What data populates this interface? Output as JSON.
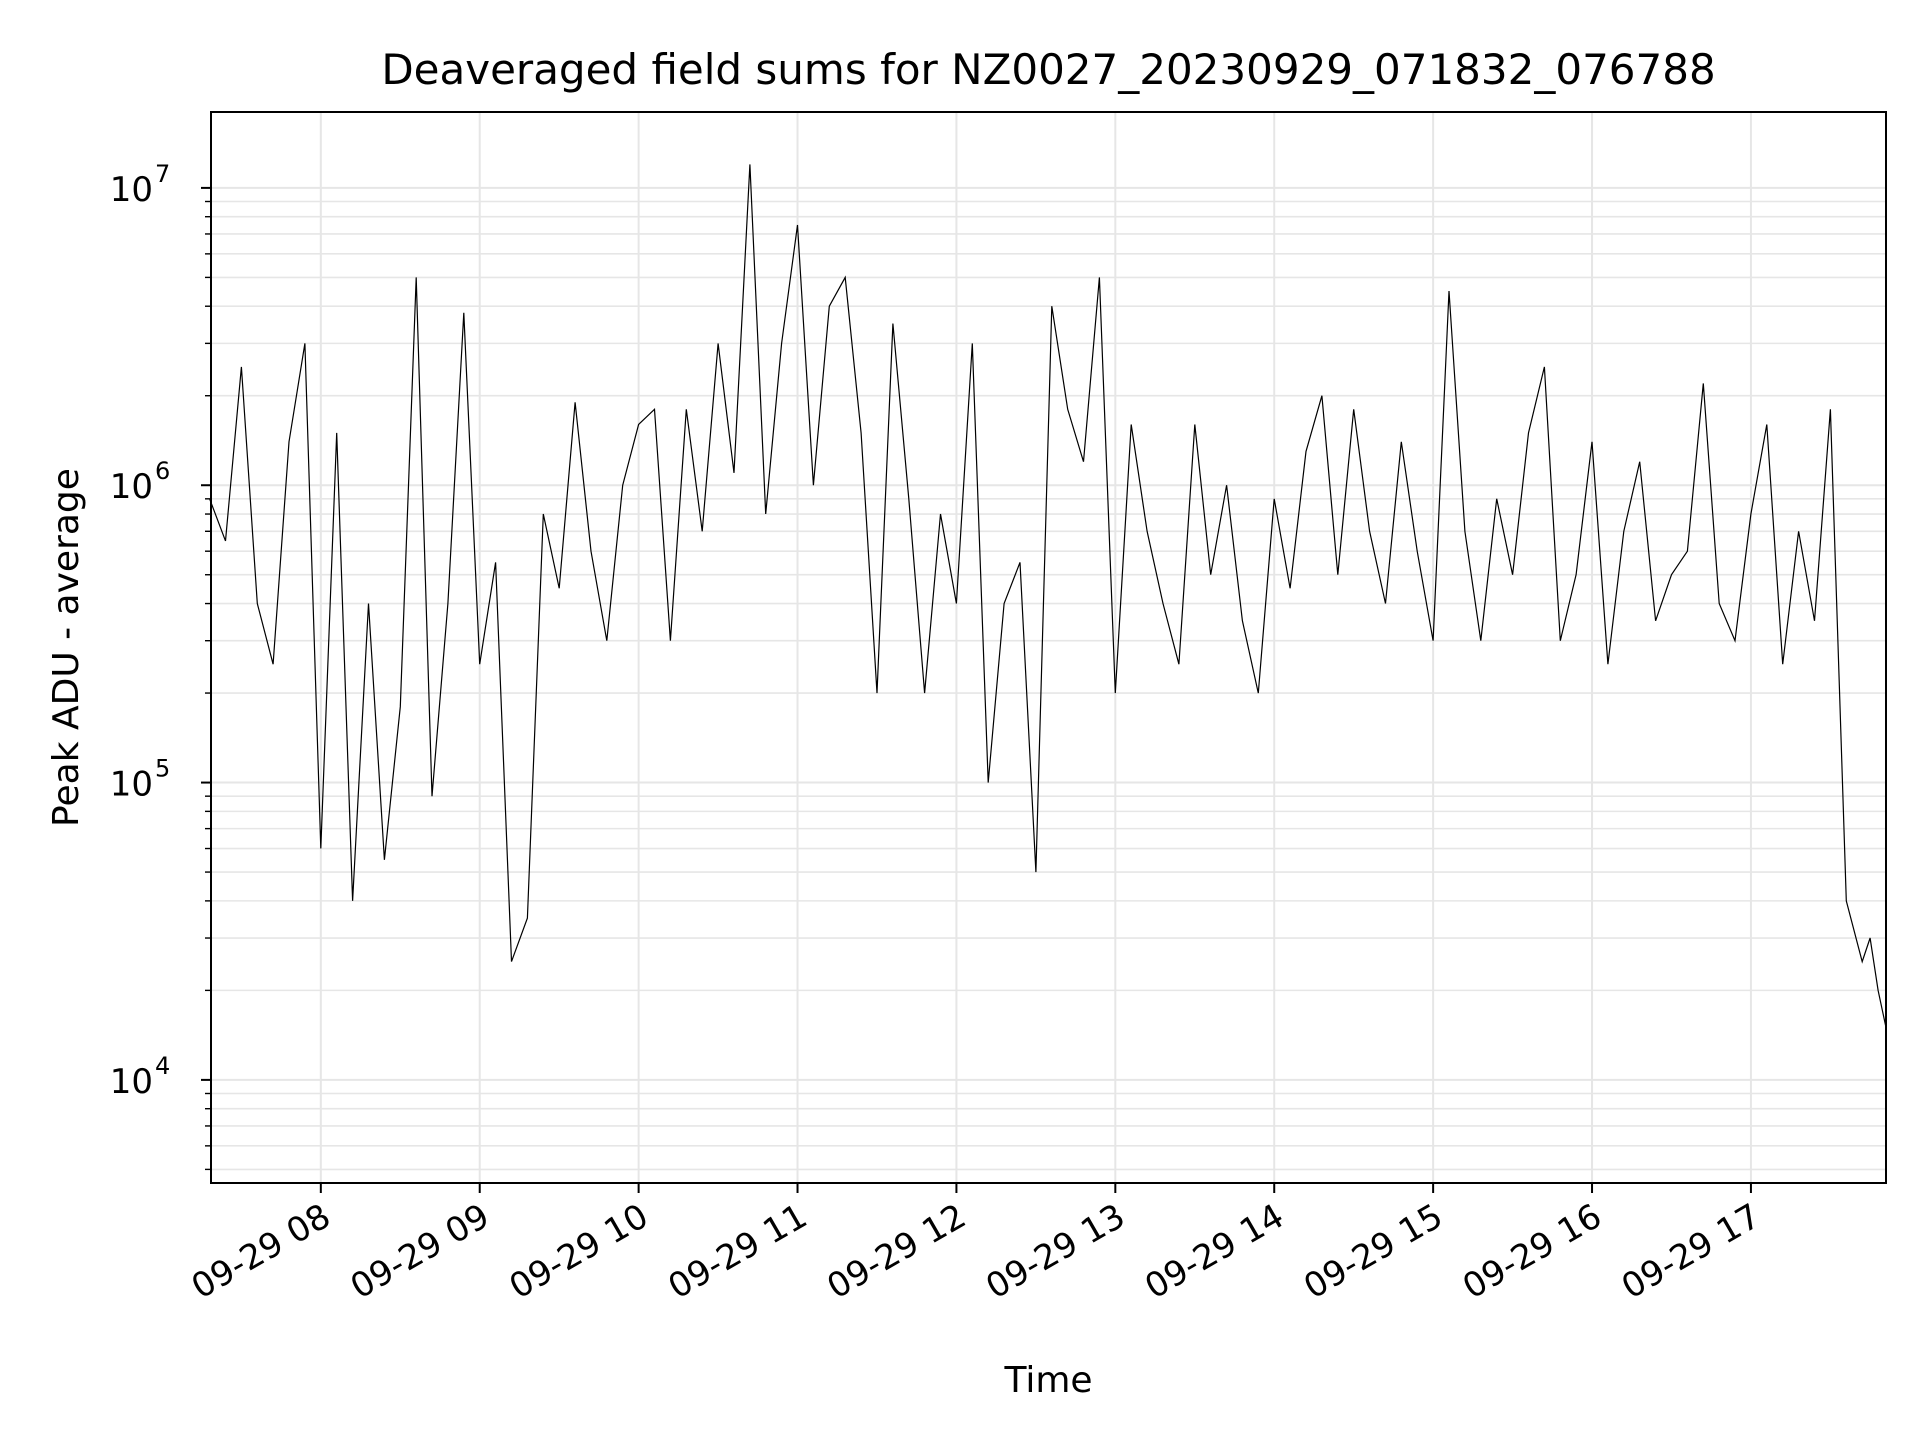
{
  "chart_data": {
    "type": "line",
    "title": "Deaveraged field sums for NZ0027_20230929_071832_076788",
    "xlabel": "Time",
    "ylabel": "Peak ADU - average",
    "yscale": "log",
    "ylim": [
      4500,
      18000000
    ],
    "xlim": [
      "2023-09-29 07:18:32",
      "2023-09-29 17:51:00"
    ],
    "grid": "on",
    "legend": "none",
    "line_color": "#000000",
    "grid_color": "#e6e6e6",
    "x_ticks": [
      {
        "time": "2023-09-29 08:00",
        "label": "09-29 08"
      },
      {
        "time": "2023-09-29 09:00",
        "label": "09-29 09"
      },
      {
        "time": "2023-09-29 10:00",
        "label": "09-29 10"
      },
      {
        "time": "2023-09-29 11:00",
        "label": "09-29 11"
      },
      {
        "time": "2023-09-29 12:00",
        "label": "09-29 12"
      },
      {
        "time": "2023-09-29 13:00",
        "label": "09-29 13"
      },
      {
        "time": "2023-09-29 14:00",
        "label": "09-29 14"
      },
      {
        "time": "2023-09-29 15:00",
        "label": "09-29 15"
      },
      {
        "time": "2023-09-29 16:00",
        "label": "09-29 16"
      },
      {
        "time": "2023-09-29 17:00",
        "label": "09-29 17"
      }
    ],
    "y_ticks": [
      {
        "value": 10000,
        "base": "10",
        "exp": "4"
      },
      {
        "value": 100000,
        "base": "10",
        "exp": "5"
      },
      {
        "value": 1000000,
        "base": "10",
        "exp": "6"
      },
      {
        "value": 10000000,
        "base": "10",
        "exp": "7"
      }
    ],
    "series": [
      {
        "x": [
          "2023-09-29 07:18",
          "2023-09-29 07:24",
          "2023-09-29 07:30",
          "2023-09-29 07:36",
          "2023-09-29 07:42",
          "2023-09-29 07:48",
          "2023-09-29 07:54",
          "2023-09-29 08:00",
          "2023-09-29 08:06",
          "2023-09-29 08:12",
          "2023-09-29 08:18",
          "2023-09-29 08:24",
          "2023-09-29 08:30",
          "2023-09-29 08:36",
          "2023-09-29 08:42",
          "2023-09-29 08:48",
          "2023-09-29 08:54",
          "2023-09-29 09:00",
          "2023-09-29 09:06",
          "2023-09-29 09:12",
          "2023-09-29 09:18",
          "2023-09-29 09:24",
          "2023-09-29 09:30",
          "2023-09-29 09:36",
          "2023-09-29 09:42",
          "2023-09-29 09:48",
          "2023-09-29 09:54",
          "2023-09-29 10:00",
          "2023-09-29 10:06",
          "2023-09-29 10:12",
          "2023-09-29 10:18",
          "2023-09-29 10:24",
          "2023-09-29 10:30",
          "2023-09-29 10:36",
          "2023-09-29 10:42",
          "2023-09-29 10:48",
          "2023-09-29 10:54",
          "2023-09-29 11:00",
          "2023-09-29 11:06",
          "2023-09-29 11:12",
          "2023-09-29 11:18",
          "2023-09-29 11:24",
          "2023-09-29 11:30",
          "2023-09-29 11:36",
          "2023-09-29 11:42",
          "2023-09-29 11:48",
          "2023-09-29 11:54",
          "2023-09-29 12:00",
          "2023-09-29 12:06",
          "2023-09-29 12:12",
          "2023-09-29 12:18",
          "2023-09-29 12:24",
          "2023-09-29 12:30",
          "2023-09-29 12:36",
          "2023-09-29 12:42",
          "2023-09-29 12:48",
          "2023-09-29 12:54",
          "2023-09-29 13:00",
          "2023-09-29 13:06",
          "2023-09-29 13:12",
          "2023-09-29 13:18",
          "2023-09-29 13:24",
          "2023-09-29 13:30",
          "2023-09-29 13:36",
          "2023-09-29 13:42",
          "2023-09-29 13:48",
          "2023-09-29 13:54",
          "2023-09-29 14:00",
          "2023-09-29 14:06",
          "2023-09-29 14:12",
          "2023-09-29 14:18",
          "2023-09-29 14:24",
          "2023-09-29 14:30",
          "2023-09-29 14:36",
          "2023-09-29 14:42",
          "2023-09-29 14:48",
          "2023-09-29 14:54",
          "2023-09-29 15:00",
          "2023-09-29 15:06",
          "2023-09-29 15:12",
          "2023-09-29 15:18",
          "2023-09-29 15:24",
          "2023-09-29 15:30",
          "2023-09-29 15:36",
          "2023-09-29 15:42",
          "2023-09-29 15:48",
          "2023-09-29 15:54",
          "2023-09-29 16:00",
          "2023-09-29 16:06",
          "2023-09-29 16:12",
          "2023-09-29 16:18",
          "2023-09-29 16:24",
          "2023-09-29 16:30",
          "2023-09-29 16:36",
          "2023-09-29 16:42",
          "2023-09-29 16:48",
          "2023-09-29 16:54",
          "2023-09-29 17:00",
          "2023-09-29 17:06",
          "2023-09-29 17:12",
          "2023-09-29 17:18",
          "2023-09-29 17:24",
          "2023-09-29 17:30",
          "2023-09-29 17:36",
          "2023-09-29 17:42",
          "2023-09-29 17:45",
          "2023-09-29 17:48",
          "2023-09-29 17:51"
        ],
        "y": [
          900000,
          650000,
          2500000,
          400000,
          250000,
          1400000,
          3000000,
          60000,
          1500000,
          40000,
          400000,
          55000,
          180000,
          5000000,
          90000,
          400000,
          3800000,
          250000,
          550000,
          25000,
          35000,
          800000,
          450000,
          1900000,
          600000,
          300000,
          1000000,
          1600000,
          1800000,
          300000,
          1800000,
          700000,
          3000000,
          1100000,
          12000000,
          800000,
          3000000,
          7500000,
          1000000,
          4000000,
          5000000,
          1500000,
          200000,
          3500000,
          900000,
          200000,
          800000,
          400000,
          3000000,
          100000,
          400000,
          550000,
          50000,
          4000000,
          1800000,
          1200000,
          5000000,
          200000,
          1600000,
          700000,
          400000,
          250000,
          1600000,
          500000,
          1000000,
          350000,
          200000,
          900000,
          450000,
          1300000,
          2000000,
          500000,
          1800000,
          700000,
          400000,
          1400000,
          600000,
          300000,
          4500000,
          700000,
          300000,
          900000,
          500000,
          1500000,
          2500000,
          300000,
          500000,
          1400000,
          250000,
          700000,
          1200000,
          350000,
          500000,
          600000,
          2200000,
          400000,
          300000,
          800000,
          1600000,
          250000,
          700000,
          350000,
          1800000,
          40000,
          25000,
          30000,
          20000,
          15000
        ]
      }
    ]
  }
}
